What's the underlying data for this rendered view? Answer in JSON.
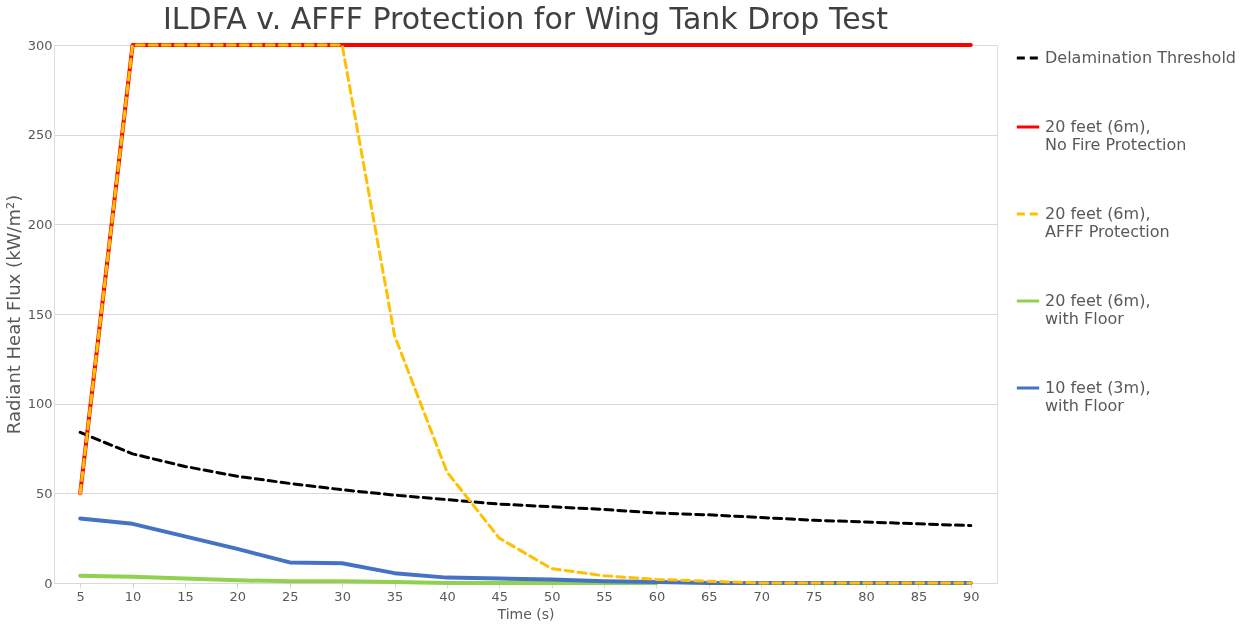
{
  "chart_data": {
    "type": "line",
    "title": "ILDFA v. AFFF Protection for Wing Tank Drop Test",
    "xlabel": "Time (s)",
    "ylabel": "Radiant Heat Flux (kW/m²)",
    "categories": [
      "5",
      "10",
      "15",
      "20",
      "25",
      "30",
      "35",
      "40",
      "45",
      "50",
      "55",
      "60",
      "65",
      "70",
      "75",
      "80",
      "85",
      "90"
    ],
    "ylim": [
      0,
      300
    ],
    "yticks": [
      0,
      50,
      100,
      150,
      200,
      250,
      300
    ],
    "grid": "y",
    "legend": "right",
    "series": [
      {
        "name": "Delamination Threshold",
        "color": "#000000",
        "line_style": "dashed",
        "values": [
          84,
          72,
          65,
          59.5,
          55.5,
          52,
          49,
          46.5,
          44,
          42.5,
          41,
          39,
          38,
          36.5,
          35,
          34,
          33,
          32
        ]
      },
      {
        "name": "20 feet (6m), No Fire Protection",
        "color": "#ff0000",
        "line_style": "solid",
        "values": [
          50,
          300,
          300,
          300,
          300,
          300,
          300,
          300,
          300,
          300,
          300,
          300,
          300,
          300,
          300,
          300,
          300,
          300
        ]
      },
      {
        "name": "20 feet (6m), AFFF Protection",
        "color": "#ffc000",
        "line_style": "dashed",
        "values": [
          50,
          300,
          300,
          300,
          300,
          300,
          138,
          62,
          25,
          8,
          4,
          2,
          1,
          0,
          0,
          0,
          0,
          0
        ]
      },
      {
        "name": "20 feet (6m), with Floor",
        "color": "#92d050",
        "line_style": "solid",
        "values": [
          4,
          3.5,
          2.5,
          1.5,
          1,
          1,
          0.5,
          0,
          0,
          0,
          0,
          0,
          null,
          null,
          null,
          null,
          null,
          null
        ]
      },
      {
        "name": "10 feet (3m), with Floor",
        "color": "#4472c4",
        "line_style": "solid",
        "values": [
          36,
          33,
          26,
          19,
          11.5,
          11,
          5.5,
          3,
          2.5,
          2,
          1,
          0.5,
          0,
          0,
          0,
          0,
          0,
          0
        ]
      }
    ]
  }
}
